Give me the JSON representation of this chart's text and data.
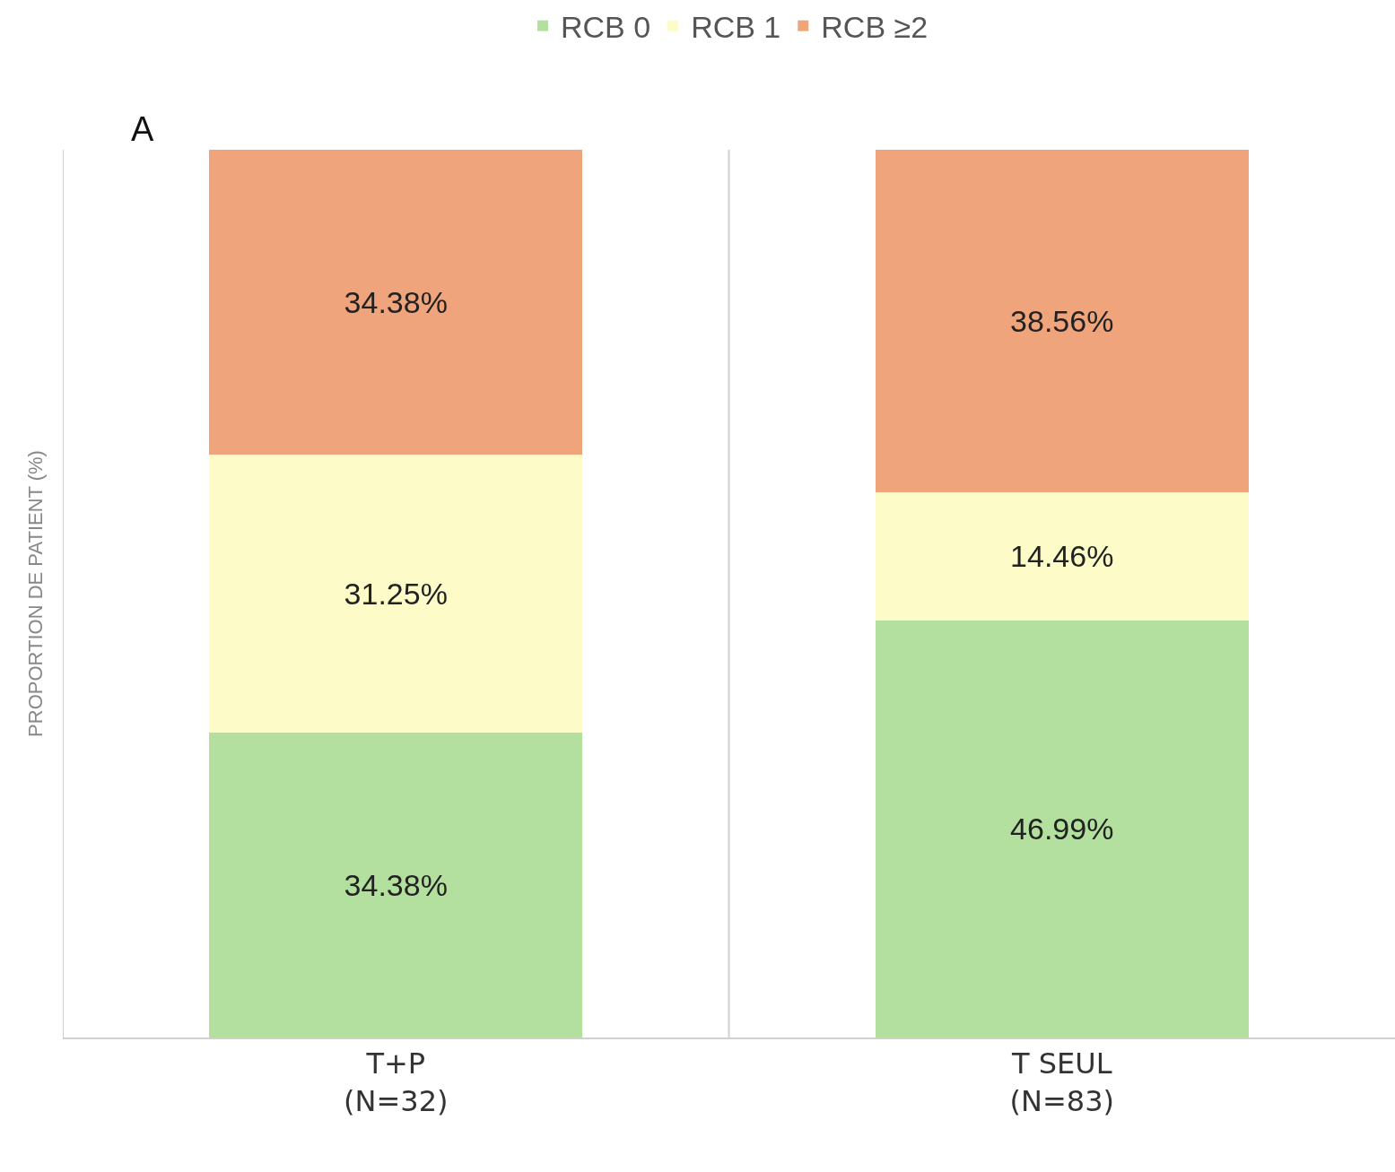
{
  "chart_data": {
    "type": "bar",
    "stacked": true,
    "ylabel": "PROPORTION DE PATIENT (%)",
    "annotations": [
      "A"
    ],
    "categories": [
      "T+P\n(N=32)",
      "T SEUL\n(N=83)"
    ],
    "series": [
      {
        "name": "RCB 0",
        "color": "#b3e09f",
        "values": [
          34.38,
          46.99
        ],
        "value_labels": [
          "34.38%",
          "46.99%"
        ]
      },
      {
        "name": "RCB 1",
        "color": "#fdfcc8",
        "values": [
          31.25,
          14.46
        ],
        "value_labels": [
          "31.25%",
          "14.46%"
        ]
      },
      {
        "name": "RCB ≥2",
        "color": "#f0a47c",
        "values": [
          34.38,
          38.56
        ],
        "value_labels": [
          "34.38%",
          "38.56%"
        ]
      }
    ],
    "ylim": [
      0,
      100.01
    ],
    "tick_labels": "x",
    "grid": "x",
    "legend": "top"
  }
}
